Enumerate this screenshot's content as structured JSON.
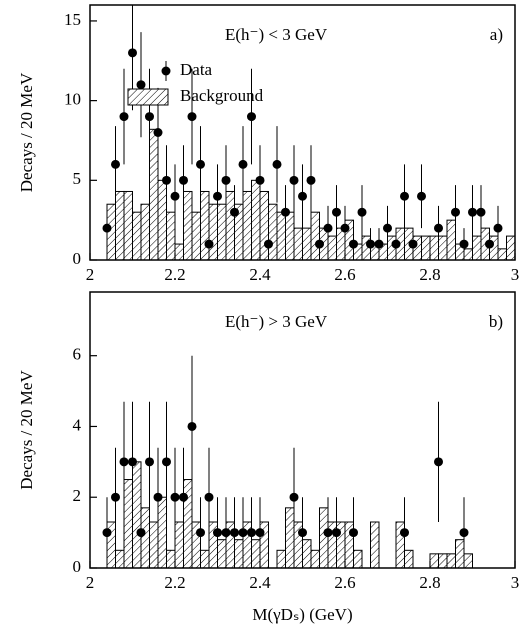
{
  "chart_data": [
    {
      "type": "histogram",
      "annotation": "E(h⁻) < 3 GeV",
      "panel_label": "a)",
      "ylabel": "Decays / 20 MeV",
      "xlim": [
        2,
        3
      ],
      "xticks": [
        2,
        2.2,
        2.4,
        2.6,
        2.8,
        3
      ],
      "ylim": [
        0,
        16
      ],
      "yticks": [
        0,
        5,
        10,
        15
      ],
      "series": [
        {
          "name": "Data",
          "color": "#000000",
          "x": [
            2.04,
            2.06,
            2.08,
            2.1,
            2.12,
            2.14,
            2.16,
            2.18,
            2.2,
            2.22,
            2.24,
            2.26,
            2.28,
            2.3,
            2.32,
            2.34,
            2.36,
            2.38,
            2.4,
            2.42,
            2.44,
            2.46,
            2.48,
            2.5,
            2.52,
            2.54,
            2.56,
            2.58,
            2.6,
            2.62,
            2.64,
            2.66,
            2.68,
            2.7,
            2.72,
            2.74,
            2.76,
            2.78,
            2.82,
            2.86,
            2.88,
            2.9,
            2.92,
            2.94,
            2.96
          ],
          "values": [
            2,
            6,
            9,
            13,
            11,
            9,
            8,
            5,
            4,
            5,
            9,
            6,
            1,
            4,
            5,
            3,
            6,
            9,
            5,
            1,
            6,
            3,
            5,
            4,
            5,
            1,
            2,
            3,
            2,
            1,
            3,
            1,
            1,
            2,
            1,
            4,
            1,
            4,
            2,
            3,
            1,
            3,
            3,
            1,
            2
          ],
          "errors": [
            1.4,
            2.4,
            3,
            3.6,
            3.3,
            3,
            2.8,
            2.2,
            2,
            2.2,
            3,
            2.4,
            1,
            2,
            2.2,
            1.7,
            2.4,
            3,
            2.2,
            1,
            2.4,
            1.7,
            2.2,
            2,
            2.2,
            1,
            1.4,
            1.7,
            1.4,
            1,
            1.7,
            1,
            1,
            1.4,
            1,
            2,
            1,
            2,
            1.4,
            1.7,
            1,
            1.7,
            1.7,
            1,
            1.4
          ]
        },
        {
          "name": "Background",
          "color": "#000000",
          "bins": [
            2.04,
            2.06,
            2.08,
            2.1,
            2.12,
            2.14,
            2.16,
            2.18,
            2.2,
            2.22,
            2.24,
            2.26,
            2.28,
            2.3,
            2.32,
            2.34,
            2.36,
            2.38,
            2.4,
            2.42,
            2.44,
            2.46,
            2.48,
            2.5,
            2.52,
            2.54,
            2.56,
            2.58,
            2.6,
            2.62,
            2.64,
            2.66,
            2.68,
            2.7,
            2.72,
            2.74,
            2.76,
            2.78,
            2.8,
            2.82,
            2.84,
            2.86,
            2.88,
            2.9,
            2.92,
            2.94,
            2.96,
            2.98,
            3.0
          ],
          "values": [
            3.5,
            4.3,
            4.3,
            3,
            3.5,
            8.2,
            5,
            3,
            1,
            4.3,
            3,
            4.3,
            3.5,
            3.5,
            4.3,
            3.5,
            4.3,
            5,
            4.3,
            3.5,
            3,
            3,
            2,
            2,
            3,
            2,
            1.5,
            2,
            2.5,
            1,
            1.5,
            1,
            1,
            1.5,
            2,
            2,
            1.5,
            1.5,
            1.5,
            1.5,
            2.5,
            1,
            0.7,
            1.5,
            2,
            1.5,
            0.7,
            1.5
          ]
        }
      ]
    },
    {
      "type": "histogram",
      "annotation": "E(h⁻) > 3 GeV",
      "panel_label": "b)",
      "ylabel": "Decays / 20 MeV",
      "xlabel": "M(γDₛ) (GeV)",
      "xlim": [
        2,
        3
      ],
      "xticks": [
        2,
        2.2,
        2.4,
        2.6,
        2.8,
        3
      ],
      "ylim": [
        0,
        7.8
      ],
      "yticks": [
        0,
        2,
        4,
        6
      ],
      "series": [
        {
          "color": "#000000",
          "x": [
            2.04,
            2.06,
            2.08,
            2.1,
            2.12,
            2.14,
            2.16,
            2.18,
            2.2,
            2.22,
            2.24,
            2.26,
            2.28,
            2.3,
            2.32,
            2.34,
            2.36,
            2.38,
            2.4,
            2.48,
            2.5,
            2.56,
            2.58,
            2.62,
            2.74,
            2.82,
            2.88
          ],
          "values": [
            1,
            2,
            3,
            3,
            1,
            3,
            2,
            3,
            2,
            2,
            4,
            1,
            2,
            1,
            1,
            1,
            1,
            1,
            1,
            2,
            1,
            1,
            1,
            1,
            1,
            3,
            1
          ],
          "errors": [
            1,
            1.4,
            1.7,
            1.7,
            1,
            1.7,
            1.4,
            1.7,
            1.4,
            1.4,
            2,
            1,
            1.4,
            1,
            1,
            1,
            1,
            1,
            1,
            1.4,
            1,
            1,
            1,
            1,
            1,
            1.7,
            1
          ]
        },
        {
          "color": "#000000",
          "bins": [
            2.04,
            2.06,
            2.08,
            2.1,
            2.12,
            2.14,
            2.16,
            2.18,
            2.2,
            2.22,
            2.24,
            2.26,
            2.28,
            2.3,
            2.32,
            2.34,
            2.36,
            2.38,
            2.4,
            2.42,
            2.44,
            2.46,
            2.48,
            2.5,
            2.52,
            2.54,
            2.56,
            2.58,
            2.6,
            2.62,
            2.64,
            2.66,
            2.68,
            2.7,
            2.72,
            2.74,
            2.76,
            2.78,
            2.8,
            2.82,
            2.84,
            2.86,
            2.88,
            2.9
          ],
          "values": [
            1.3,
            0.5,
            2.5,
            3,
            1.7,
            1.3,
            2,
            0.5,
            1.3,
            2.5,
            1.3,
            0.5,
            1.3,
            0.8,
            1.3,
            0.8,
            1.3,
            0.8,
            1.3,
            0,
            0.5,
            1.7,
            1.3,
            0.8,
            0.5,
            1.7,
            1.3,
            1.3,
            1.3,
            0.5,
            0,
            1.3,
            0,
            0,
            1.3,
            0.5,
            0,
            0,
            0.4,
            0.4,
            0.4,
            0.8,
            0.4
          ]
        }
      ]
    }
  ]
}
